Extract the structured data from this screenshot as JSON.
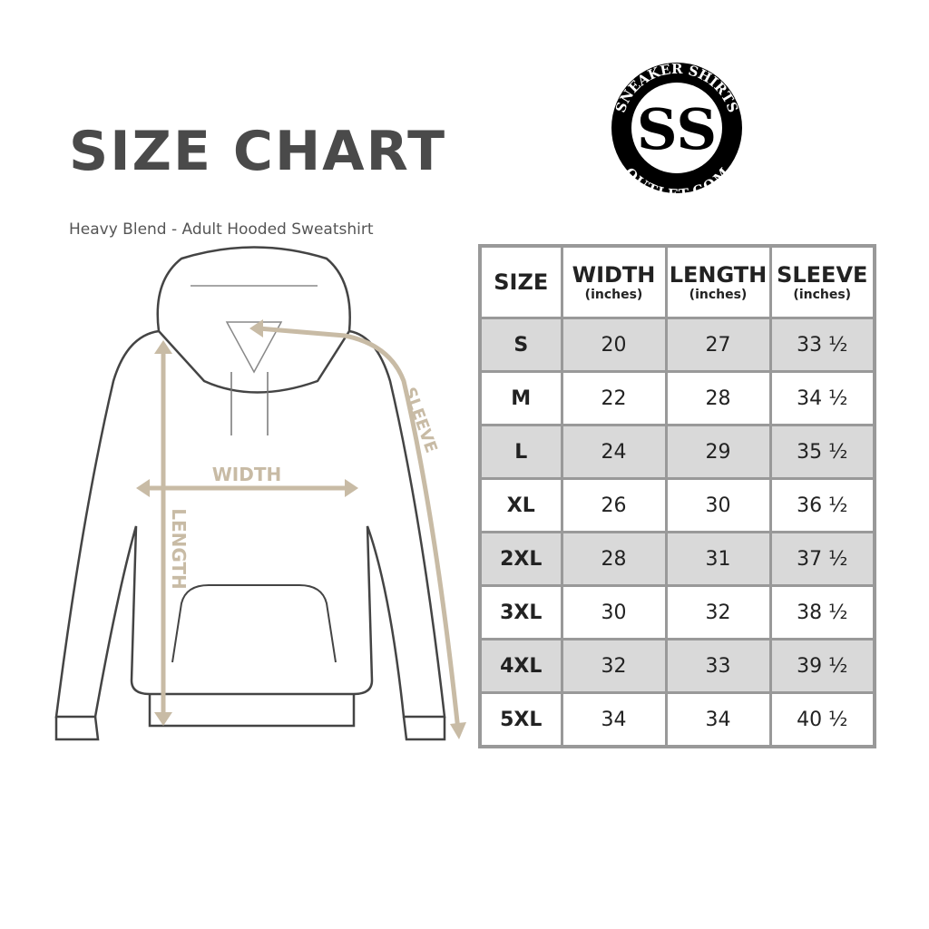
{
  "header": {
    "title": "SIZE CHART",
    "subtitle": "Heavy Blend - Adult Hooded Sweatshirt"
  },
  "logo": {
    "top_text": "SNEAKER SHIRTS",
    "bottom_text": "OUTLET.COM",
    "monogram": "SS"
  },
  "diagram": {
    "labels": {
      "width": "WIDTH",
      "length": "LENGTH",
      "sleeve": "SLEEVE"
    },
    "measure_color": "#c8bba5"
  },
  "table": {
    "headers": [
      {
        "main": "SIZE",
        "unit": ""
      },
      {
        "main": "WIDTH",
        "unit": "(inches)"
      },
      {
        "main": "LENGTH",
        "unit": "(inches)"
      },
      {
        "main": "SLEEVE",
        "unit": "(inches)"
      }
    ],
    "rows": [
      [
        "S",
        "20",
        "27",
        "33 ½"
      ],
      [
        "M",
        "22",
        "28",
        "34 ½"
      ],
      [
        "L",
        "24",
        "29",
        "35 ½"
      ],
      [
        "XL",
        "26",
        "30",
        "36 ½"
      ],
      [
        "2XL",
        "28",
        "31",
        "37 ½"
      ],
      [
        "3XL",
        "30",
        "32",
        "38 ½"
      ],
      [
        "4XL",
        "32",
        "33",
        "39 ½"
      ],
      [
        "5XL",
        "34",
        "34",
        "40 ½"
      ]
    ],
    "stripe_color": "#d9d9d9",
    "border_color": "#999999"
  }
}
